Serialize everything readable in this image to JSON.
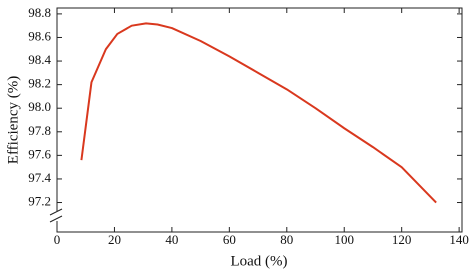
{
  "chart_data": {
    "type": "line",
    "x_label": "Load (%)",
    "y_label": "Efficiency (%)",
    "series": [
      {
        "name": "Efficiency",
        "color": "#d9381e",
        "x": [
          8.5,
          12,
          17,
          21,
          26,
          31,
          35,
          40,
          50,
          60,
          70,
          80,
          90,
          100,
          110,
          120,
          132
        ],
        "values": [
          97.56,
          98.22,
          98.5,
          98.63,
          98.7,
          98.72,
          98.71,
          98.68,
          98.57,
          98.44,
          98.3,
          98.16,
          98.0,
          97.83,
          97.67,
          97.5,
          97.2
        ]
      }
    ],
    "xlim": [
      0,
      141
    ],
    "xticks": [
      0,
      20,
      40,
      60,
      80,
      100,
      120,
      140
    ],
    "ylim": [
      96.95,
      98.85
    ],
    "yticks": [
      {
        "value": 97.2,
        "label": "97.2"
      },
      {
        "value": 97.4,
        "label": "97.4"
      },
      {
        "value": 97.6,
        "label": "97.6"
      },
      {
        "value": 97.8,
        "label": "97.8"
      },
      {
        "value": 98.0,
        "label": "98.0"
      },
      {
        "value": 98.2,
        "label": "98.2"
      },
      {
        "value": 98.4,
        "label": "98.4"
      },
      {
        "value": 98.6,
        "label": "98.6"
      },
      {
        "value": 98.8,
        "label": "98.8"
      }
    ],
    "grid": false
  }
}
